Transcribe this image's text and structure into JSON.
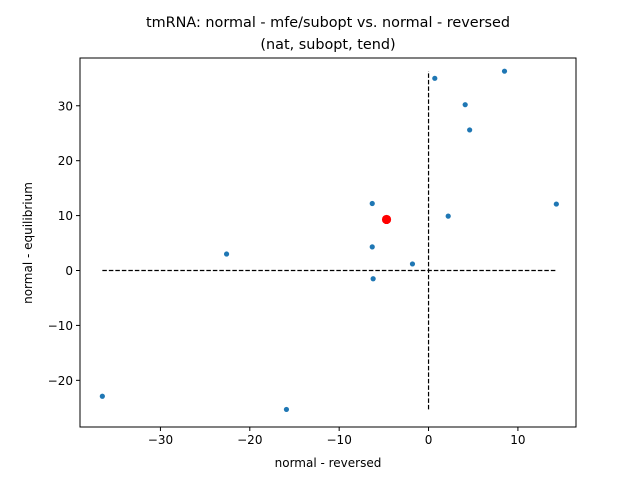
{
  "chart_data": {
    "type": "scatter",
    "title_lines": [
      "tmRNA: normal - mfe/subopt vs. normal - reversed",
      "(nat, subopt, tend)"
    ],
    "xlabel": "normal - reversed",
    "ylabel": "normal - equilibrium",
    "xlim": [
      -39,
      16.5
    ],
    "ylim": [
      -28.5,
      38.7
    ],
    "xticks": [
      -30,
      -20,
      -10,
      0,
      10
    ],
    "yticks": [
      -20,
      -10,
      0,
      10,
      20,
      30
    ],
    "xtick_labels": [
      "−30",
      "−20",
      "−10",
      "0",
      "10"
    ],
    "ytick_labels": [
      "−20",
      "−10",
      "0",
      "10",
      "20",
      "30"
    ],
    "grid": false,
    "series": [
      {
        "color": "#1f77b4",
        "points": [
          [
            -36.5,
            -22.9
          ],
          [
            -22.6,
            3.0
          ],
          [
            -15.9,
            -25.3
          ],
          [
            -6.3,
            12.2
          ],
          [
            -6.3,
            4.3
          ],
          [
            -6.2,
            -1.5
          ],
          [
            -1.8,
            1.2
          ],
          [
            0.7,
            35.0
          ],
          [
            2.2,
            9.9
          ],
          [
            4.1,
            30.2
          ],
          [
            4.6,
            25.6
          ],
          [
            8.5,
            36.3
          ],
          [
            14.3,
            12.1
          ]
        ]
      },
      {
        "color": "#ff0000",
        "points": [
          [
            -4.7,
            9.3
          ]
        ]
      }
    ],
    "reference_lines": [
      {
        "orientation": "horizontal",
        "y": 0,
        "x_from": -36.5,
        "x_to": 14.3
      },
      {
        "orientation": "vertical",
        "x": 0,
        "y_from": -25.3,
        "y_to": 36.3
      }
    ]
  }
}
